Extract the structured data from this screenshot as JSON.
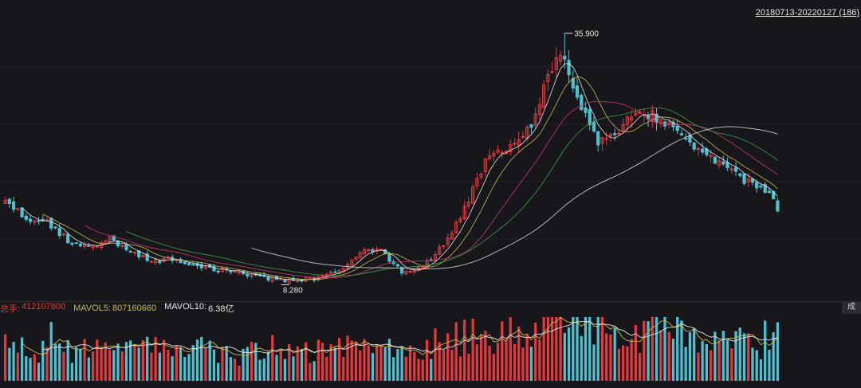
{
  "header": {
    "range_label": "20180713-20220127 (186)"
  },
  "volume_legend": {
    "total_label": "总手:",
    "total_value": "412107800",
    "ma5_label": "MAVOL5:",
    "ma5_value": "807160660",
    "ma10_label": "MAVOL10:",
    "ma10_value": "6.38亿"
  },
  "corner_button": {
    "label": "成"
  },
  "colors": {
    "background": "#17171b",
    "up": "#e0393e",
    "down": "#4fc0d0",
    "ma5": "#e6e6e6",
    "ma10": "#c9b84b",
    "ma20": "#c23a6a",
    "ma30": "#3ea04a",
    "ma60": "#d8d8d8"
  },
  "chart_data": {
    "type": "candlestick",
    "x_start": "20180713",
    "x_end": "20220127",
    "bar_count": 186,
    "price_annotations": [
      {
        "label": "35.900",
        "kind": "high",
        "value": 35.9
      },
      {
        "label": "8.280",
        "kind": "low",
        "value": 8.28
      }
    ],
    "close_waypoints": [
      [
        0,
        17.5
      ],
      [
        5,
        15.5
      ],
      [
        10,
        15.2
      ],
      [
        15,
        13.2
      ],
      [
        20,
        12.4
      ],
      [
        25,
        13.4
      ],
      [
        30,
        12.0
      ],
      [
        35,
        10.8
      ],
      [
        40,
        11.2
      ],
      [
        45,
        10.6
      ],
      [
        50,
        10.0
      ],
      [
        55,
        9.6
      ],
      [
        60,
        9.2
      ],
      [
        65,
        8.8
      ],
      [
        70,
        8.8
      ],
      [
        75,
        9.0
      ],
      [
        80,
        9.8
      ],
      [
        85,
        11.8
      ],
      [
        90,
        12.0
      ],
      [
        95,
        9.8
      ],
      [
        100,
        10.3
      ],
      [
        105,
        12.6
      ],
      [
        110,
        16.5
      ],
      [
        115,
        22.0
      ],
      [
        120,
        23.5
      ],
      [
        125,
        25.0
      ],
      [
        130,
        31.0
      ],
      [
        133,
        33.5
      ],
      [
        137,
        29.0
      ],
      [
        142,
        24.0
      ],
      [
        147,
        25.5
      ],
      [
        152,
        27.5
      ],
      [
        157,
        26.5
      ],
      [
        163,
        24.5
      ],
      [
        168,
        22.5
      ],
      [
        173,
        20.8
      ],
      [
        178,
        19.5
      ],
      [
        182,
        18.8
      ],
      [
        185,
        16.6
      ]
    ],
    "volume": {
      "total": 412107800,
      "mavol5": 807160660,
      "mavol10_label": "6.38亿"
    },
    "moving_averages": [
      "MA5",
      "MA10",
      "MA20",
      "MA30",
      "MA60"
    ]
  }
}
